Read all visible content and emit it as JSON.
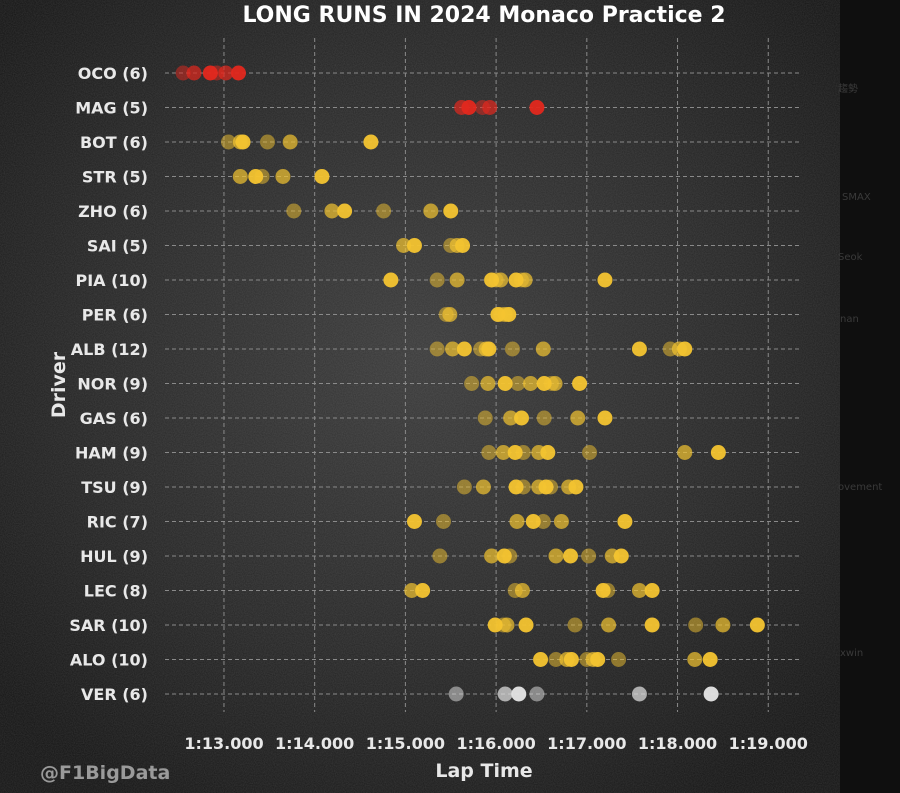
{
  "chart_data": {
    "type": "scatter",
    "title": "LONG RUNS IN 2024 Monaco Practice 2",
    "xlabel": "Lap Time",
    "ylabel": "Driver",
    "xlim": [
      72.35,
      79.35
    ],
    "x_ticks": [
      {
        "value": 73,
        "label": "1:13.000"
      },
      {
        "value": 74,
        "label": "1:14.000"
      },
      {
        "value": 75,
        "label": "1:15.000"
      },
      {
        "value": 76,
        "label": "1:16.000"
      },
      {
        "value": 77,
        "label": "1:17.000"
      },
      {
        "value": 78,
        "label": "1:18.000"
      },
      {
        "value": 79,
        "label": "1:19.000"
      }
    ],
    "grid": true,
    "colors": {
      "background": "#141414",
      "grid": "#8a8a8a",
      "red_marker": "#e3281e",
      "yellow_marker": "#f4c430",
      "white_marker": "#e6e6e6"
    },
    "drivers": [
      {
        "label": "OCO (6)",
        "color": "#e3281e",
        "laps": [
          72.55,
          72.67,
          72.85,
          72.92,
          73.02,
          73.16
        ]
      },
      {
        "label": "MAG (5)",
        "color": "#e3281e",
        "laps": [
          75.62,
          75.7,
          75.85,
          75.93,
          76.45
        ]
      },
      {
        "label": "BOT (6)",
        "color": "#f4c430",
        "laps": [
          73.05,
          73.18,
          73.21,
          73.48,
          73.73,
          74.62
        ]
      },
      {
        "label": "STR (5)",
        "color": "#f4c430",
        "laps": [
          73.18,
          73.35,
          73.42,
          73.65,
          74.08
        ]
      },
      {
        "label": "ZHO (6)",
        "color": "#f4c430",
        "laps": [
          73.77,
          74.19,
          74.33,
          74.76,
          75.28,
          75.5
        ]
      },
      {
        "label": "SAI (5)",
        "color": "#f4c430",
        "laps": [
          74.98,
          75.1,
          75.5,
          75.57,
          75.63
        ]
      },
      {
        "label": "PIA (10)",
        "color": "#f4c430",
        "laps": [
          74.84,
          75.35,
          75.57,
          75.95,
          76.0,
          76.22,
          76.28,
          76.32,
          77.2,
          76.05
        ]
      },
      {
        "label": "PER (6)",
        "color": "#f4c430",
        "laps": [
          75.45,
          75.49,
          76.02,
          76.05,
          76.1,
          76.14
        ]
      },
      {
        "label": "ALB (12)",
        "color": "#f4c430",
        "laps": [
          75.35,
          75.52,
          75.65,
          75.83,
          75.89,
          75.92,
          76.18,
          76.52,
          77.58,
          77.92,
          78.02,
          78.08
        ]
      },
      {
        "label": "NOR (9)",
        "color": "#f4c430",
        "laps": [
          75.73,
          75.91,
          76.1,
          76.24,
          76.38,
          76.53,
          76.61,
          76.65,
          76.92
        ]
      },
      {
        "label": "GAS (6)",
        "color": "#f4c430",
        "laps": [
          75.88,
          76.16,
          76.28,
          76.53,
          76.9,
          77.2
        ]
      },
      {
        "label": "HAM (9)",
        "color": "#f4c430",
        "laps": [
          75.92,
          76.08,
          76.21,
          76.3,
          76.47,
          76.57,
          77.03,
          78.08,
          78.45
        ]
      },
      {
        "label": "TSU (9)",
        "color": "#f4c430",
        "laps": [
          75.65,
          75.86,
          76.22,
          76.3,
          76.47,
          76.55,
          76.6,
          76.8,
          76.88
        ]
      },
      {
        "label": "RIC (7)",
        "color": "#f4c430",
        "laps": [
          75.1,
          75.42,
          76.23,
          76.41,
          76.52,
          76.72,
          77.42
        ]
      },
      {
        "label": "HUL (9)",
        "color": "#f4c430",
        "laps": [
          75.38,
          75.95,
          76.09,
          76.15,
          76.66,
          76.82,
          77.02,
          77.28,
          77.38
        ]
      },
      {
        "label": "LEC (8)",
        "color": "#f4c430",
        "laps": [
          75.07,
          75.19,
          76.21,
          76.29,
          77.18,
          77.23,
          77.58,
          77.72
        ]
      },
      {
        "label": "SAR (10)",
        "color": "#f4c430",
        "laps": [
          75.99,
          76.12,
          76.33,
          76.87,
          77.24,
          77.72,
          78.2,
          78.5,
          78.88,
          76.08
        ]
      },
      {
        "label": "ALO (10)",
        "color": "#f4c430",
        "laps": [
          76.49,
          76.66,
          76.78,
          76.83,
          77.0,
          77.07,
          77.12,
          77.35,
          78.19,
          78.36
        ]
      },
      {
        "label": "VER (6)",
        "color": "#e6e6e6",
        "laps": [
          75.56,
          76.1,
          76.25,
          76.45,
          77.58,
          78.37
        ]
      }
    ]
  },
  "watermark": "@F1BigData",
  "ghost_text": [
    "趨勢",
    "SMAX",
    "Seok",
    "nan",
    "ovement",
    "xwin"
  ]
}
